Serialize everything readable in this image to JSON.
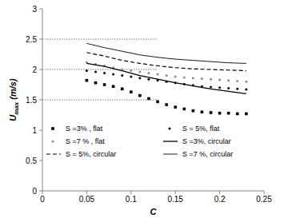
{
  "chart_data": {
    "type": "scatter",
    "x_label": "C",
    "y_label": "Umax (m/s)",
    "xlim": [
      0,
      0.25
    ],
    "xticks": [
      0,
      0.05,
      0.1,
      0.15,
      0.2,
      0.25
    ],
    "ylim": [
      0,
      3
    ],
    "yticks": [
      0,
      0.5,
      1,
      1.5,
      2,
      2.5,
      3
    ],
    "grid": false,
    "legend": "bottom",
    "reference_lines": [
      {
        "y": 2.5,
        "xlim": [
          0,
          0.13
        ]
      },
      {
        "y": 2,
        "xlim": [
          0,
          0.13
        ]
      },
      {
        "y": 1.5,
        "xlim": [
          0,
          0.13
        ]
      }
    ],
    "series": [
      {
        "name": "S =3% , flat",
        "type": "scatter",
        "marker": "square",
        "color": "#000000",
        "x": [
          0.05,
          0.06,
          0.07,
          0.08,
          0.09,
          0.1,
          0.11,
          0.12,
          0.13,
          0.14,
          0.15,
          0.16,
          0.17,
          0.18,
          0.19,
          0.2,
          0.21,
          0.22,
          0.23
        ],
        "values": [
          1.82,
          1.78,
          1.75,
          1.72,
          1.68,
          1.63,
          1.57,
          1.52,
          1.47,
          1.42,
          1.38,
          1.35,
          1.32,
          1.3,
          1.29,
          1.28,
          1.28,
          1.27,
          1.27
        ]
      },
      {
        "name": "S = 5%, flat",
        "type": "scatter",
        "marker": "circle",
        "color": "#000000",
        "x": [
          0.05,
          0.06,
          0.07,
          0.08,
          0.09,
          0.1,
          0.11,
          0.12,
          0.13,
          0.14,
          0.15,
          0.16,
          0.17,
          0.18,
          0.19,
          0.2,
          0.21,
          0.22,
          0.23
        ],
        "values": [
          1.98,
          1.96,
          1.94,
          1.92,
          1.9,
          1.88,
          1.86,
          1.84,
          1.82,
          1.8,
          1.78,
          1.76,
          1.74,
          1.72,
          1.71,
          1.7,
          1.69,
          1.68,
          1.67
        ]
      },
      {
        "name": "S =7 % , flat",
        "type": "scatter",
        "marker": "circle",
        "color": "#8c8c8c",
        "x": [
          0.05,
          0.06,
          0.07,
          0.08,
          0.09,
          0.1,
          0.11,
          0.12,
          0.13,
          0.14,
          0.15,
          0.16,
          0.17,
          0.18,
          0.19,
          0.2,
          0.21,
          0.22,
          0.23
        ],
        "values": [
          2.12,
          2.09,
          2.06,
          2.03,
          2.0,
          1.98,
          1.96,
          1.94,
          1.92,
          1.9,
          1.88,
          1.87,
          1.86,
          1.85,
          1.84,
          1.83,
          1.82,
          1.81,
          1.8
        ]
      },
      {
        "name": "S =3%, circular",
        "type": "line",
        "line_style": "solid",
        "color": "#000000",
        "x": [
          0.05,
          0.07,
          0.09,
          0.11,
          0.13,
          0.15,
          0.17,
          0.19,
          0.21,
          0.23
        ],
        "values": [
          2.1,
          2.05,
          1.98,
          1.9,
          1.84,
          1.78,
          1.73,
          1.68,
          1.64,
          1.6
        ]
      },
      {
        "name": "S = 5%, circular",
        "type": "line",
        "line_style": "dashed",
        "color": "#000000",
        "x": [
          0.05,
          0.07,
          0.09,
          0.11,
          0.13,
          0.15,
          0.17,
          0.19,
          0.21,
          0.23
        ],
        "values": [
          2.28,
          2.22,
          2.15,
          2.1,
          2.06,
          2.03,
          2.01,
          2.0,
          1.99,
          1.98
        ]
      },
      {
        "name": "S =7 %, circular",
        "type": "line",
        "line_style": "thin",
        "color": "#000000",
        "x": [
          0.05,
          0.07,
          0.09,
          0.11,
          0.13,
          0.15,
          0.17,
          0.19,
          0.21,
          0.23
        ],
        "values": [
          2.43,
          2.36,
          2.3,
          2.24,
          2.2,
          2.17,
          2.15,
          2.13,
          2.11,
          2.1
        ]
      }
    ]
  }
}
